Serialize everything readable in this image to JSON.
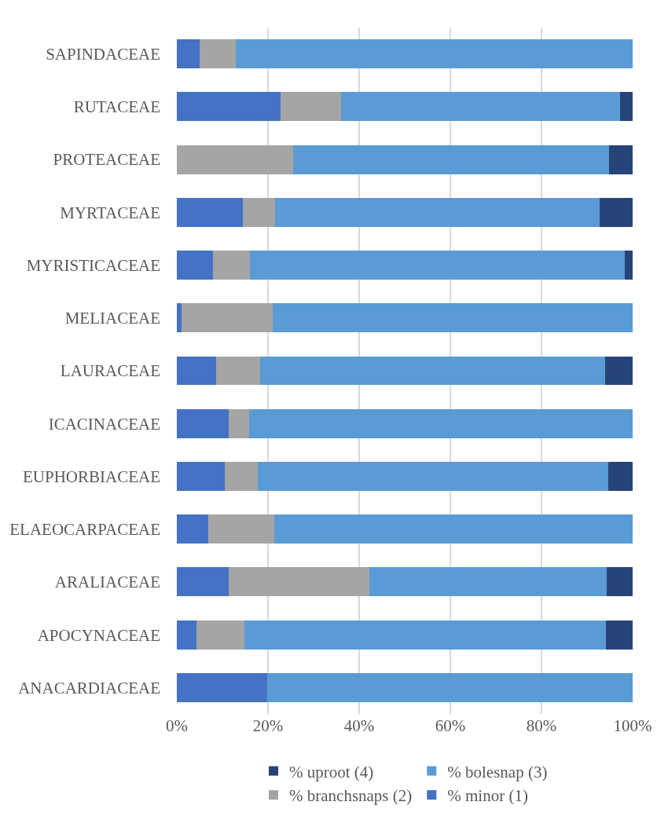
{
  "chart_data": {
    "type": "bar",
    "orientation": "horizontal",
    "stacked": true,
    "categories": [
      "SAPINDACEAE",
      "RUTACEAE",
      "PROTEACEAE",
      "MYRTACEAE",
      "MYRISTICACEAE",
      "MELIACEAE",
      "LAURACEAE",
      "ICACINACEAE",
      "EUPHORBIACEAE",
      "ELAEOCARPACEAE",
      "ARALIACEAE",
      "APOCYNACEAE",
      "ANACARDIACEAE"
    ],
    "series": [
      {
        "name": "% minor (1)",
        "color": "#4472c4",
        "values": [
          5.0,
          22.8,
          0,
          14.4,
          7.9,
          1.1,
          8.6,
          11.3,
          10.5,
          6.9,
          11.4,
          4.3,
          19.8
        ]
      },
      {
        "name": "% branchsnaps (2)",
        "color": "#a5a5a5",
        "values": [
          8.0,
          13.3,
          25.5,
          7.2,
          8.1,
          19.9,
          9.7,
          4.6,
          7.3,
          14.5,
          30.9,
          10.6,
          0
        ]
      },
      {
        "name": "% bolesnap (3)",
        "color": "#5b9bd5",
        "values": [
          87.0,
          61.1,
          69.4,
          71.1,
          82.3,
          79.0,
          75.6,
          84.1,
          76.8,
          78.6,
          52.0,
          79.2,
          80.2
        ]
      },
      {
        "name": "% uproot (4)",
        "color": "#264478",
        "values": [
          0,
          2.8,
          5.1,
          7.3,
          1.7,
          0,
          6.1,
          0,
          5.4,
          0,
          5.7,
          5.9,
          0
        ]
      }
    ],
    "xlim": [
      0,
      100
    ],
    "xticks": [
      {
        "value": 0,
        "label": "0%"
      },
      {
        "value": 20,
        "label": "20%"
      },
      {
        "value": 40,
        "label": "40%"
      },
      {
        "value": 60,
        "label": "60%"
      },
      {
        "value": 80,
        "label": "80%"
      },
      {
        "value": 100,
        "label": "100%"
      }
    ],
    "grid": "x",
    "legend": "bottom"
  }
}
